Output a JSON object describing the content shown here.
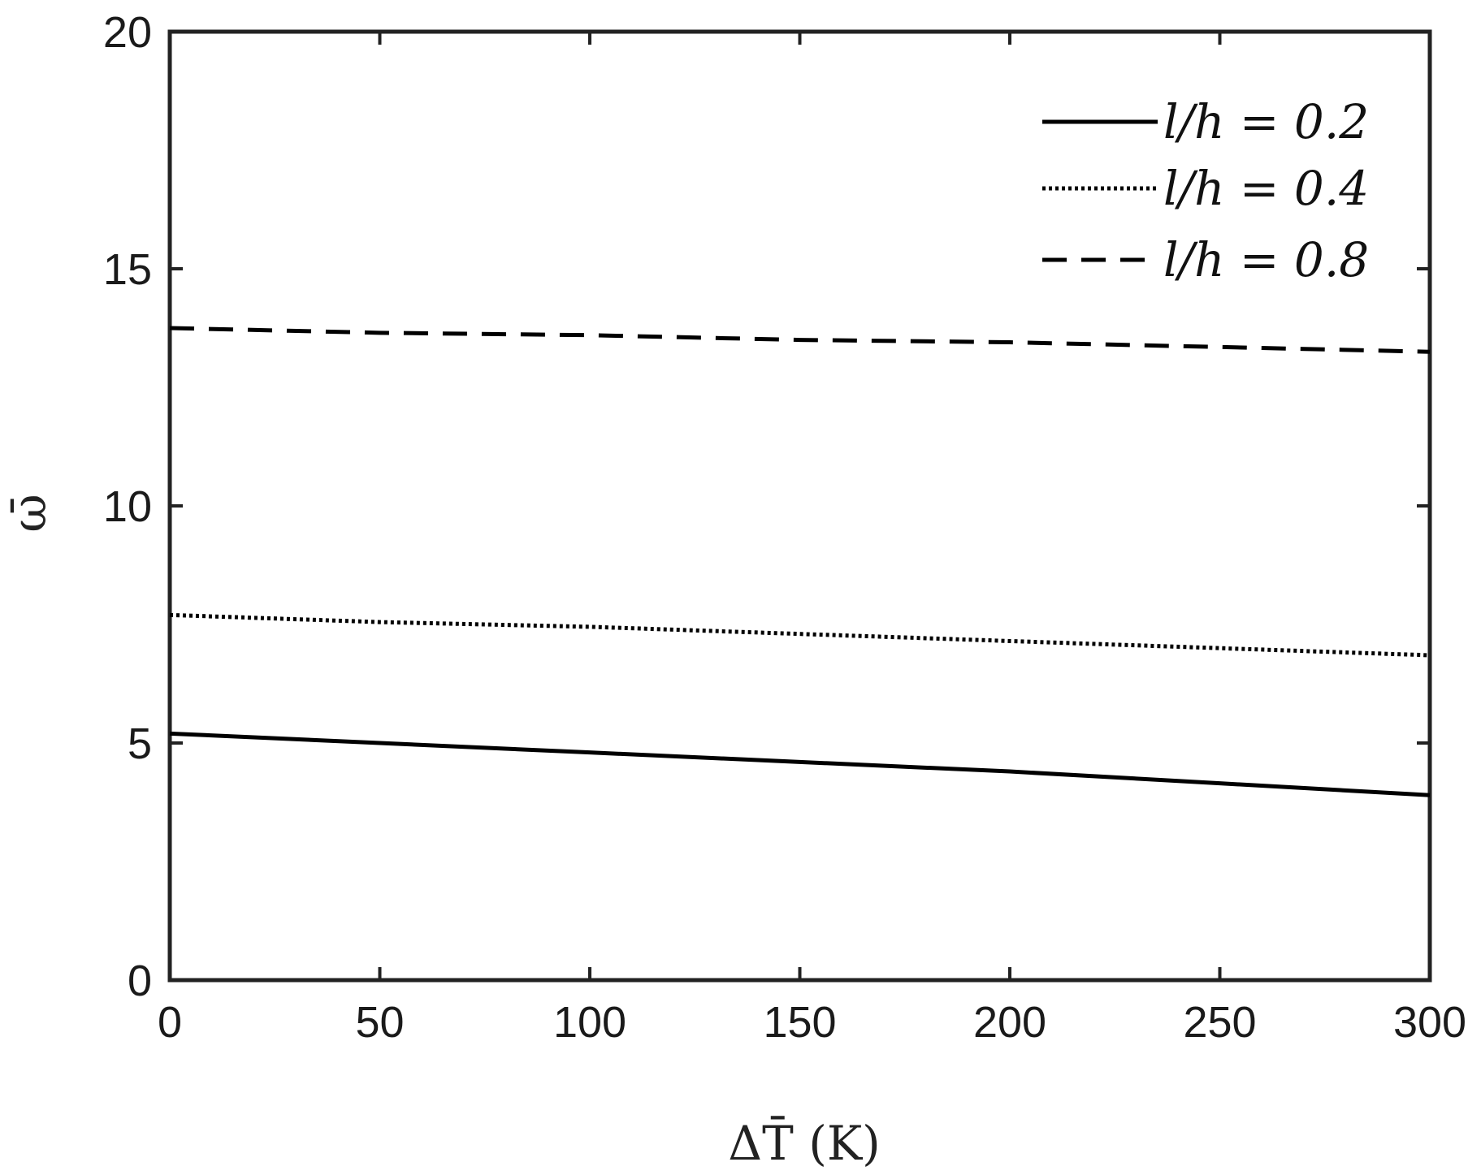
{
  "chart_data": {
    "type": "line",
    "title": "",
    "xlabel": "ΔT̄ (K)",
    "ylabel": "ω̄",
    "xlim": [
      0,
      300
    ],
    "ylim": [
      0,
      20
    ],
    "x_ticks": [
      "0",
      "50",
      "100",
      "150",
      "200",
      "250",
      "300"
    ],
    "y_ticks": [
      "0",
      "5",
      "10",
      "15",
      "20"
    ],
    "grid": false,
    "legend_position": "top-right",
    "x": [
      0,
      50,
      100,
      150,
      200,
      250,
      300
    ],
    "series": [
      {
        "name": "l/h = 0.2",
        "style": "solid",
        "values": [
          5.2,
          5.0,
          4.8,
          4.6,
          4.4,
          4.15,
          3.9
        ]
      },
      {
        "name": "l/h = 0.4",
        "style": "dotted",
        "values": [
          7.7,
          7.55,
          7.45,
          7.3,
          7.15,
          7.0,
          6.85
        ]
      },
      {
        "name": "l/h = 0.8",
        "style": "dashed",
        "values": [
          13.75,
          13.65,
          13.6,
          13.5,
          13.45,
          13.35,
          13.25
        ]
      }
    ],
    "colors": {
      "line": "#000000",
      "axis": "#222222"
    }
  }
}
